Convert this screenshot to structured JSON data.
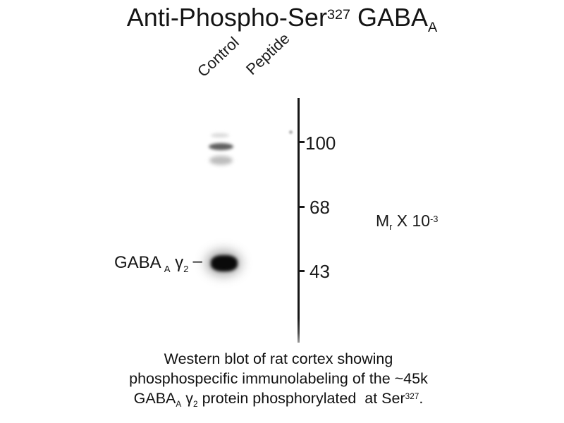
{
  "title": {
    "part1": "Anti-Phospho-Ser",
    "sup": "327",
    "part2": " GABA",
    "sub": "A"
  },
  "lane_labels": [
    "Control",
    "Peptide"
  ],
  "mw_axis": {
    "ticks": [
      "100",
      "68",
      "43"
    ],
    "unit_label": {
      "part1": "M",
      "sub": "r",
      "part2": " X 10",
      "sup": "-3"
    }
  },
  "band_label": {
    "part1": "GABA",
    "sub1": "A",
    "part2": " γ",
    "sub2": "2",
    "dash": "–"
  },
  "caption": {
    "line1": "Western blot of rat cortex showing",
    "line2": "phosphospecific immunolabeling of the ~45k",
    "line3": {
      "part1": "GABA",
      "sub1": "A",
      "part2": " γ",
      "sub2": "2",
      "part3": " protein phosphorylated  at Ser",
      "sup": "327",
      "end": "."
    }
  },
  "blot": {
    "bands": [
      {
        "lane": "Control",
        "approx_position": "~100k",
        "appearance": "faint doublet"
      },
      {
        "lane": "Control",
        "approx_position": "~45k",
        "appearance": "strong dark band"
      },
      {
        "lane": "Peptide",
        "approx_position": "",
        "appearance": "no bands"
      }
    ],
    "colors": {
      "background": "#ffffff",
      "ink": "#141414",
      "strong_band": "#0a0a0a",
      "faint_band": "#5f5f5f"
    }
  }
}
